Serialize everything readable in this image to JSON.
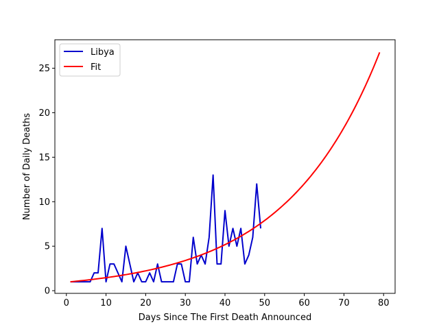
{
  "chart_data": {
    "type": "line",
    "title": "",
    "xlabel": "Days Since The First Death Announced",
    "ylabel": "Number of Daily Deaths",
    "xlim": [
      -2.9,
      82.9
    ],
    "ylim": [
      -0.3,
      28.2
    ],
    "xticks": [
      0,
      10,
      20,
      30,
      40,
      50,
      60,
      70,
      80
    ],
    "yticks": [
      0,
      5,
      10,
      15,
      20,
      25
    ],
    "grid": false,
    "legend": "top-left",
    "series": [
      {
        "name": "Libya",
        "color": "#0000cc",
        "x": [
          1,
          2,
          3,
          4,
          5,
          6,
          7,
          8,
          9,
          10,
          11,
          12,
          13,
          14,
          15,
          16,
          17,
          18,
          19,
          20,
          21,
          22,
          23,
          24,
          25,
          26,
          27,
          28,
          29,
          30,
          31,
          32,
          33,
          34,
          35,
          36,
          37,
          38,
          39,
          40,
          41,
          42,
          43,
          44,
          45,
          46,
          47,
          48,
          49
        ],
        "y": [
          1,
          1,
          1,
          1,
          1,
          1,
          2,
          2,
          7,
          1,
          3,
          3,
          2,
          1,
          5,
          3,
          1,
          2,
          1,
          1,
          2,
          1,
          3,
          1,
          1,
          1,
          1,
          3,
          3,
          1,
          1,
          6,
          3,
          4,
          3,
          6,
          13,
          3,
          3,
          9,
          5,
          7,
          5,
          7,
          3,
          4,
          6,
          12,
          7
        ]
      },
      {
        "name": "Fit",
        "color": "#ff0000",
        "model": "exponential",
        "x_range": [
          1,
          79
        ],
        "y_start": 1.0,
        "growth_rate": 0.04215
      }
    ]
  }
}
